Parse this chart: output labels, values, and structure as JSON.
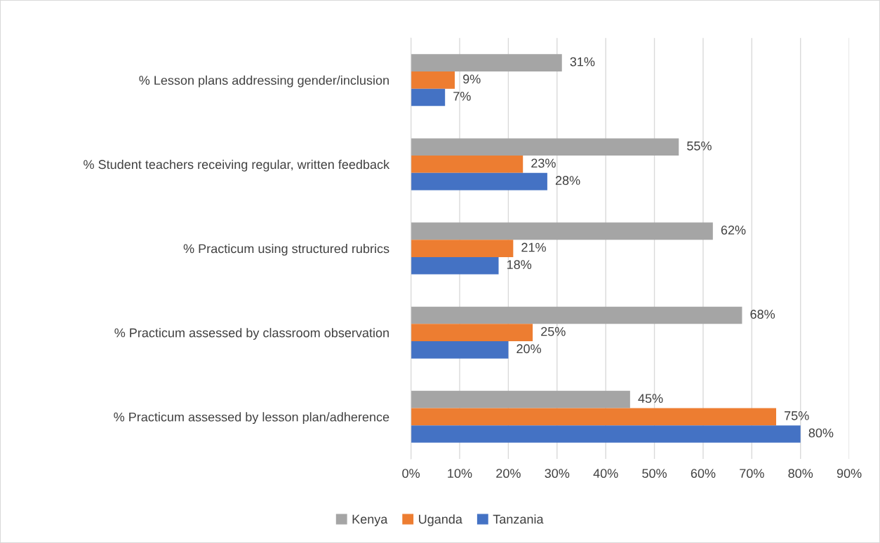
{
  "chart_data": {
    "type": "bar",
    "orientation": "horizontal",
    "categories": [
      "% Lesson plans addressing gender/inclusion",
      "% Student teachers receiving regular, written feedback",
      "% Practicum using structured rubrics",
      "% Practicum assessed by classroom observation",
      "% Practicum assessed by lesson plan/adherence"
    ],
    "series": [
      {
        "name": "Kenya",
        "color": "#a5a5a5",
        "values": [
          31,
          55,
          62,
          68,
          45
        ],
        "value_labels": [
          "31%",
          "55%",
          "62%",
          "68%",
          "45%"
        ]
      },
      {
        "name": "Uganda",
        "color": "#ed7d31",
        "values": [
          9,
          23,
          21,
          25,
          75
        ],
        "value_labels": [
          "9%",
          "23%",
          "21%",
          "25%",
          "75%"
        ]
      },
      {
        "name": "Tanzania",
        "color": "#4472c4",
        "values": [
          7,
          28,
          18,
          20,
          80
        ],
        "value_labels": [
          "7%",
          "28%",
          "18%",
          "20%",
          "80%"
        ]
      }
    ],
    "xlim": [
      0,
      90
    ],
    "xticks": [
      {
        "value": 0,
        "label": "0%"
      },
      {
        "value": 10,
        "label": "10%"
      },
      {
        "value": 20,
        "label": "20%"
      },
      {
        "value": 30,
        "label": "30%"
      },
      {
        "value": 40,
        "label": "40%"
      },
      {
        "value": 50,
        "label": "50%"
      },
      {
        "value": 60,
        "label": "60%"
      },
      {
        "value": 70,
        "label": "70%"
      },
      {
        "value": 80,
        "label": "80%"
      },
      {
        "value": 90,
        "label": "90%"
      }
    ],
    "grid": "x",
    "legend": "bottom"
  }
}
